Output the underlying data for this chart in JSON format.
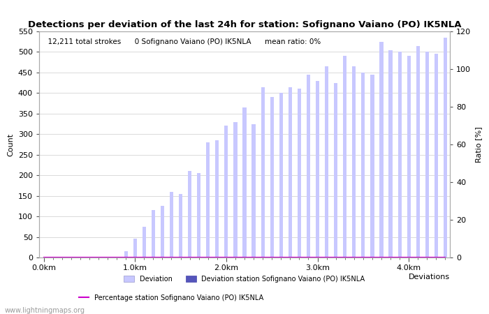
{
  "title": "Detections per deviation of the last 24h for station: Sofignano Vaiano (PO) IK5NLA",
  "subtitle_left": "12,211 total strokes",
  "subtitle_mid": "0 Sofignano Vaiano (PO) IK5NLA",
  "subtitle_right": "mean ratio: 0%",
  "xlabel": "Deviations",
  "ylabel_left": "Count",
  "ylabel_right": "Ratio [%]",
  "x_tick_labels": [
    "0.0km",
    "1.0km",
    "2.0km",
    "3.0km",
    "4.0km"
  ],
  "x_tick_positions": [
    0,
    10,
    20,
    30,
    40
  ],
  "ylim_left": [
    0,
    550
  ],
  "ylim_right": [
    0,
    120
  ],
  "yticks_left": [
    0,
    50,
    100,
    150,
    200,
    250,
    300,
    350,
    400,
    450,
    500,
    550
  ],
  "yticks_right": [
    0,
    20,
    40,
    60,
    80,
    100,
    120
  ],
  "bar_values": [
    0,
    0,
    0,
    0,
    0,
    0,
    0,
    1,
    0,
    15,
    45,
    75,
    115,
    125,
    160,
    155,
    210,
    205,
    280,
    285,
    320,
    330,
    365,
    325,
    415,
    390,
    400,
    415,
    410,
    445,
    430,
    465,
    425,
    490,
    465,
    450,
    445,
    525,
    505,
    500,
    490,
    515,
    500,
    495,
    535
  ],
  "station_bar_values": [
    0,
    0,
    0,
    0,
    0,
    0,
    0,
    0,
    0,
    0,
    0,
    0,
    0,
    0,
    0,
    0,
    0,
    0,
    0,
    0,
    0,
    0,
    0,
    0,
    0,
    0,
    0,
    0,
    0,
    0,
    0,
    0,
    0,
    0,
    0,
    0,
    0,
    0,
    0,
    0,
    0,
    0,
    0,
    0,
    0
  ],
  "bar_color_light": "#c8c8ff",
  "bar_color_dark": "#5555bb",
  "line_color": "#cc00cc",
  "background_color": "#ffffff",
  "grid_color": "#cccccc",
  "watermark": "www.lightningmaps.org",
  "num_bars": 45,
  "bar_width": 0.4,
  "legend1_label": "Deviation",
  "legend2_label": "Deviation station Sofignano Vaiano (PO) IK5NLA",
  "legend3_label": "Percentage station Sofignano Vaiano (PO) IK5NLA",
  "title_fontsize": 9.5,
  "axis_fontsize": 8,
  "subtitle_fontsize": 7.5
}
